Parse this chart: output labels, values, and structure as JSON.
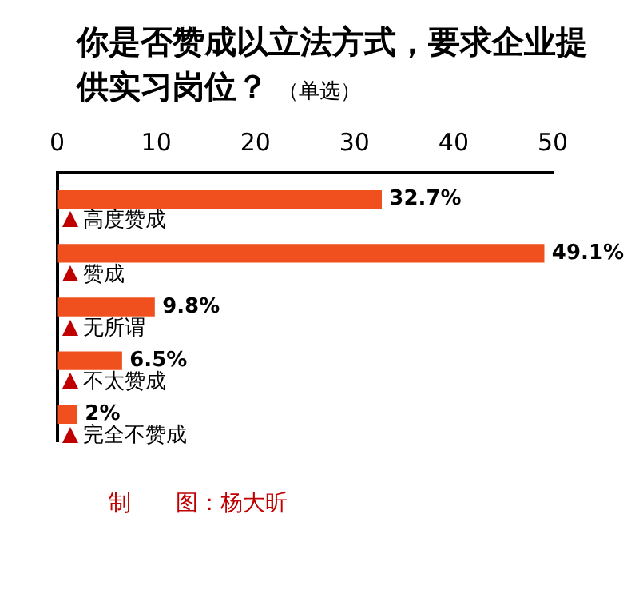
{
  "chart_data": {
    "type": "bar",
    "orientation": "horizontal",
    "title": "你是否赞成以立法方式，要求企业提供实习岗位？",
    "subtitle": "（单选）",
    "categories": [
      "高度赞成",
      "赞成",
      "无所谓",
      "不太赞成",
      "完全不赞成"
    ],
    "values": [
      32.7,
      49.1,
      9.8,
      6.5,
      2
    ],
    "value_labels": [
      "32.7%",
      "49.1%",
      "9.8%",
      "6.5%",
      "2%"
    ],
    "color": "#f0501e",
    "xlim": [
      0,
      50
    ],
    "xticks": [
      0,
      10,
      20,
      30,
      40,
      50
    ],
    "grid": false,
    "tick_labels": "x",
    "annotations": [
      "制　　图：杨大昕"
    ]
  }
}
